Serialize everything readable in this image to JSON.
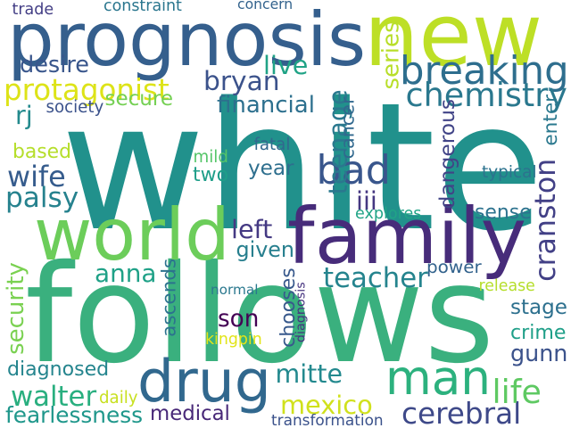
{
  "words": [
    {
      "text": "white",
      "color": "#21918c",
      "rotated": false
    },
    {
      "text": "follows",
      "color": "#3ab07e",
      "rotated": false
    },
    {
      "text": "prognosis",
      "color": "#355f8d",
      "rotated": false
    },
    {
      "text": "new",
      "color": "#bddf26",
      "rotated": false
    },
    {
      "text": "family",
      "color": "#472c7a",
      "rotated": false
    },
    {
      "text": "world",
      "color": "#6ccd5a",
      "rotated": false
    },
    {
      "text": "drug",
      "color": "#31688e",
      "rotated": false
    },
    {
      "text": "man",
      "color": "#2cb17e",
      "rotated": false
    },
    {
      "text": "breaking",
      "color": "#2e6e8e",
      "rotated": false
    },
    {
      "text": "bad",
      "color": "#39568c",
      "rotated": false
    },
    {
      "text": "chemistry",
      "color": "#2a788e",
      "rotated": false
    },
    {
      "text": "cranston",
      "color": "#424086",
      "rotated": true
    },
    {
      "text": "teenage",
      "color": "#2a788e",
      "rotated": true
    },
    {
      "text": "protagonist",
      "color": "#dde318",
      "rotated": false
    },
    {
      "text": "bryan",
      "color": "#3b528b",
      "rotated": false
    },
    {
      "text": "teacher",
      "color": "#25848e",
      "rotated": false
    },
    {
      "text": "cerebral",
      "color": "#3e4989",
      "rotated": false
    },
    {
      "text": "mexico",
      "color": "#d0e11c",
      "rotated": false
    },
    {
      "text": "walter",
      "color": "#29af7f",
      "rotated": false
    },
    {
      "text": "mitte",
      "color": "#23898e",
      "rotated": false
    },
    {
      "text": "wife",
      "color": "#365c8d",
      "rotated": false
    },
    {
      "text": "palsy",
      "color": "#26828e",
      "rotated": false
    },
    {
      "text": "anna",
      "color": "#1fa187",
      "rotated": false
    },
    {
      "text": "son",
      "color": "#440154",
      "rotated": false
    },
    {
      "text": "gunn",
      "color": "#3b528b",
      "rotated": false
    },
    {
      "text": "life",
      "color": "#5ec962",
      "rotated": false
    },
    {
      "text": "crime",
      "color": "#1f9f88",
      "rotated": false
    },
    {
      "text": "rj",
      "color": "#238a8d",
      "rotated": false
    },
    {
      "text": "financial",
      "color": "#2d708e",
      "rotated": false
    },
    {
      "text": "secure",
      "color": "#75d054",
      "rotated": false
    },
    {
      "text": "desire",
      "color": "#39568c",
      "rotated": false
    },
    {
      "text": "dangerous",
      "color": "#414487",
      "rotated": true
    },
    {
      "text": "left",
      "color": "#443983",
      "rotated": false
    },
    {
      "text": "given",
      "color": "#277f8e",
      "rotated": false
    },
    {
      "text": "power",
      "color": "#33638d",
      "rotated": false
    },
    {
      "text": "sense",
      "color": "#2c728e",
      "rotated": false
    },
    {
      "text": "stage",
      "color": "#2d708e",
      "rotated": false
    },
    {
      "text": "diagnosed",
      "color": "#25858e",
      "rotated": false
    },
    {
      "text": "fearlessness",
      "color": "#1f978b",
      "rotated": false
    },
    {
      "text": "medical",
      "color": "#482878",
      "rotated": false
    },
    {
      "text": "chooses",
      "color": "#38598c",
      "rotated": true
    },
    {
      "text": "ascends",
      "color": "#2c728e",
      "rotated": true
    },
    {
      "text": "security",
      "color": "#7ad151",
      "rotated": true
    },
    {
      "text": "year",
      "color": "#2e6f8e",
      "rotated": false
    },
    {
      "text": "two",
      "color": "#1f9e89",
      "rotated": false
    },
    {
      "text": "iii",
      "color": "#453781",
      "rotated": false
    },
    {
      "text": "based",
      "color": "#b5de2b",
      "rotated": false
    },
    {
      "text": "live",
      "color": "#20a386",
      "rotated": false
    },
    {
      "text": "series",
      "color": "#b8de29",
      "rotated": true
    },
    {
      "text": "cancer",
      "color": "#31688e",
      "rotated": true
    },
    {
      "text": "enter",
      "color": "#2a788e",
      "rotated": true
    },
    {
      "text": "society",
      "color": "#3b528b",
      "rotated": false
    },
    {
      "text": "trade",
      "color": "#433e85",
      "rotated": false
    },
    {
      "text": "constraint",
      "color": "#2a768e",
      "rotated": false
    },
    {
      "text": "concern",
      "color": "#33638d",
      "rotated": false
    },
    {
      "text": "mild",
      "color": "#54c568",
      "rotated": false
    },
    {
      "text": "fatal",
      "color": "#31688e",
      "rotated": false
    },
    {
      "text": "typical",
      "color": "#2c728e",
      "rotated": false
    },
    {
      "text": "explores",
      "color": "#20a486",
      "rotated": false
    },
    {
      "text": "normal",
      "color": "#2a788e",
      "rotated": false
    },
    {
      "text": "diagnosis",
      "color": "#46337f",
      "rotated": true
    },
    {
      "text": "release",
      "color": "#b5de2b",
      "rotated": false
    },
    {
      "text": "kingpin",
      "color": "#e2e418",
      "rotated": false
    },
    {
      "text": "daily",
      "color": "#c8e020",
      "rotated": false
    },
    {
      "text": "transformation",
      "color": "#3b528b",
      "rotated": false
    }
  ]
}
